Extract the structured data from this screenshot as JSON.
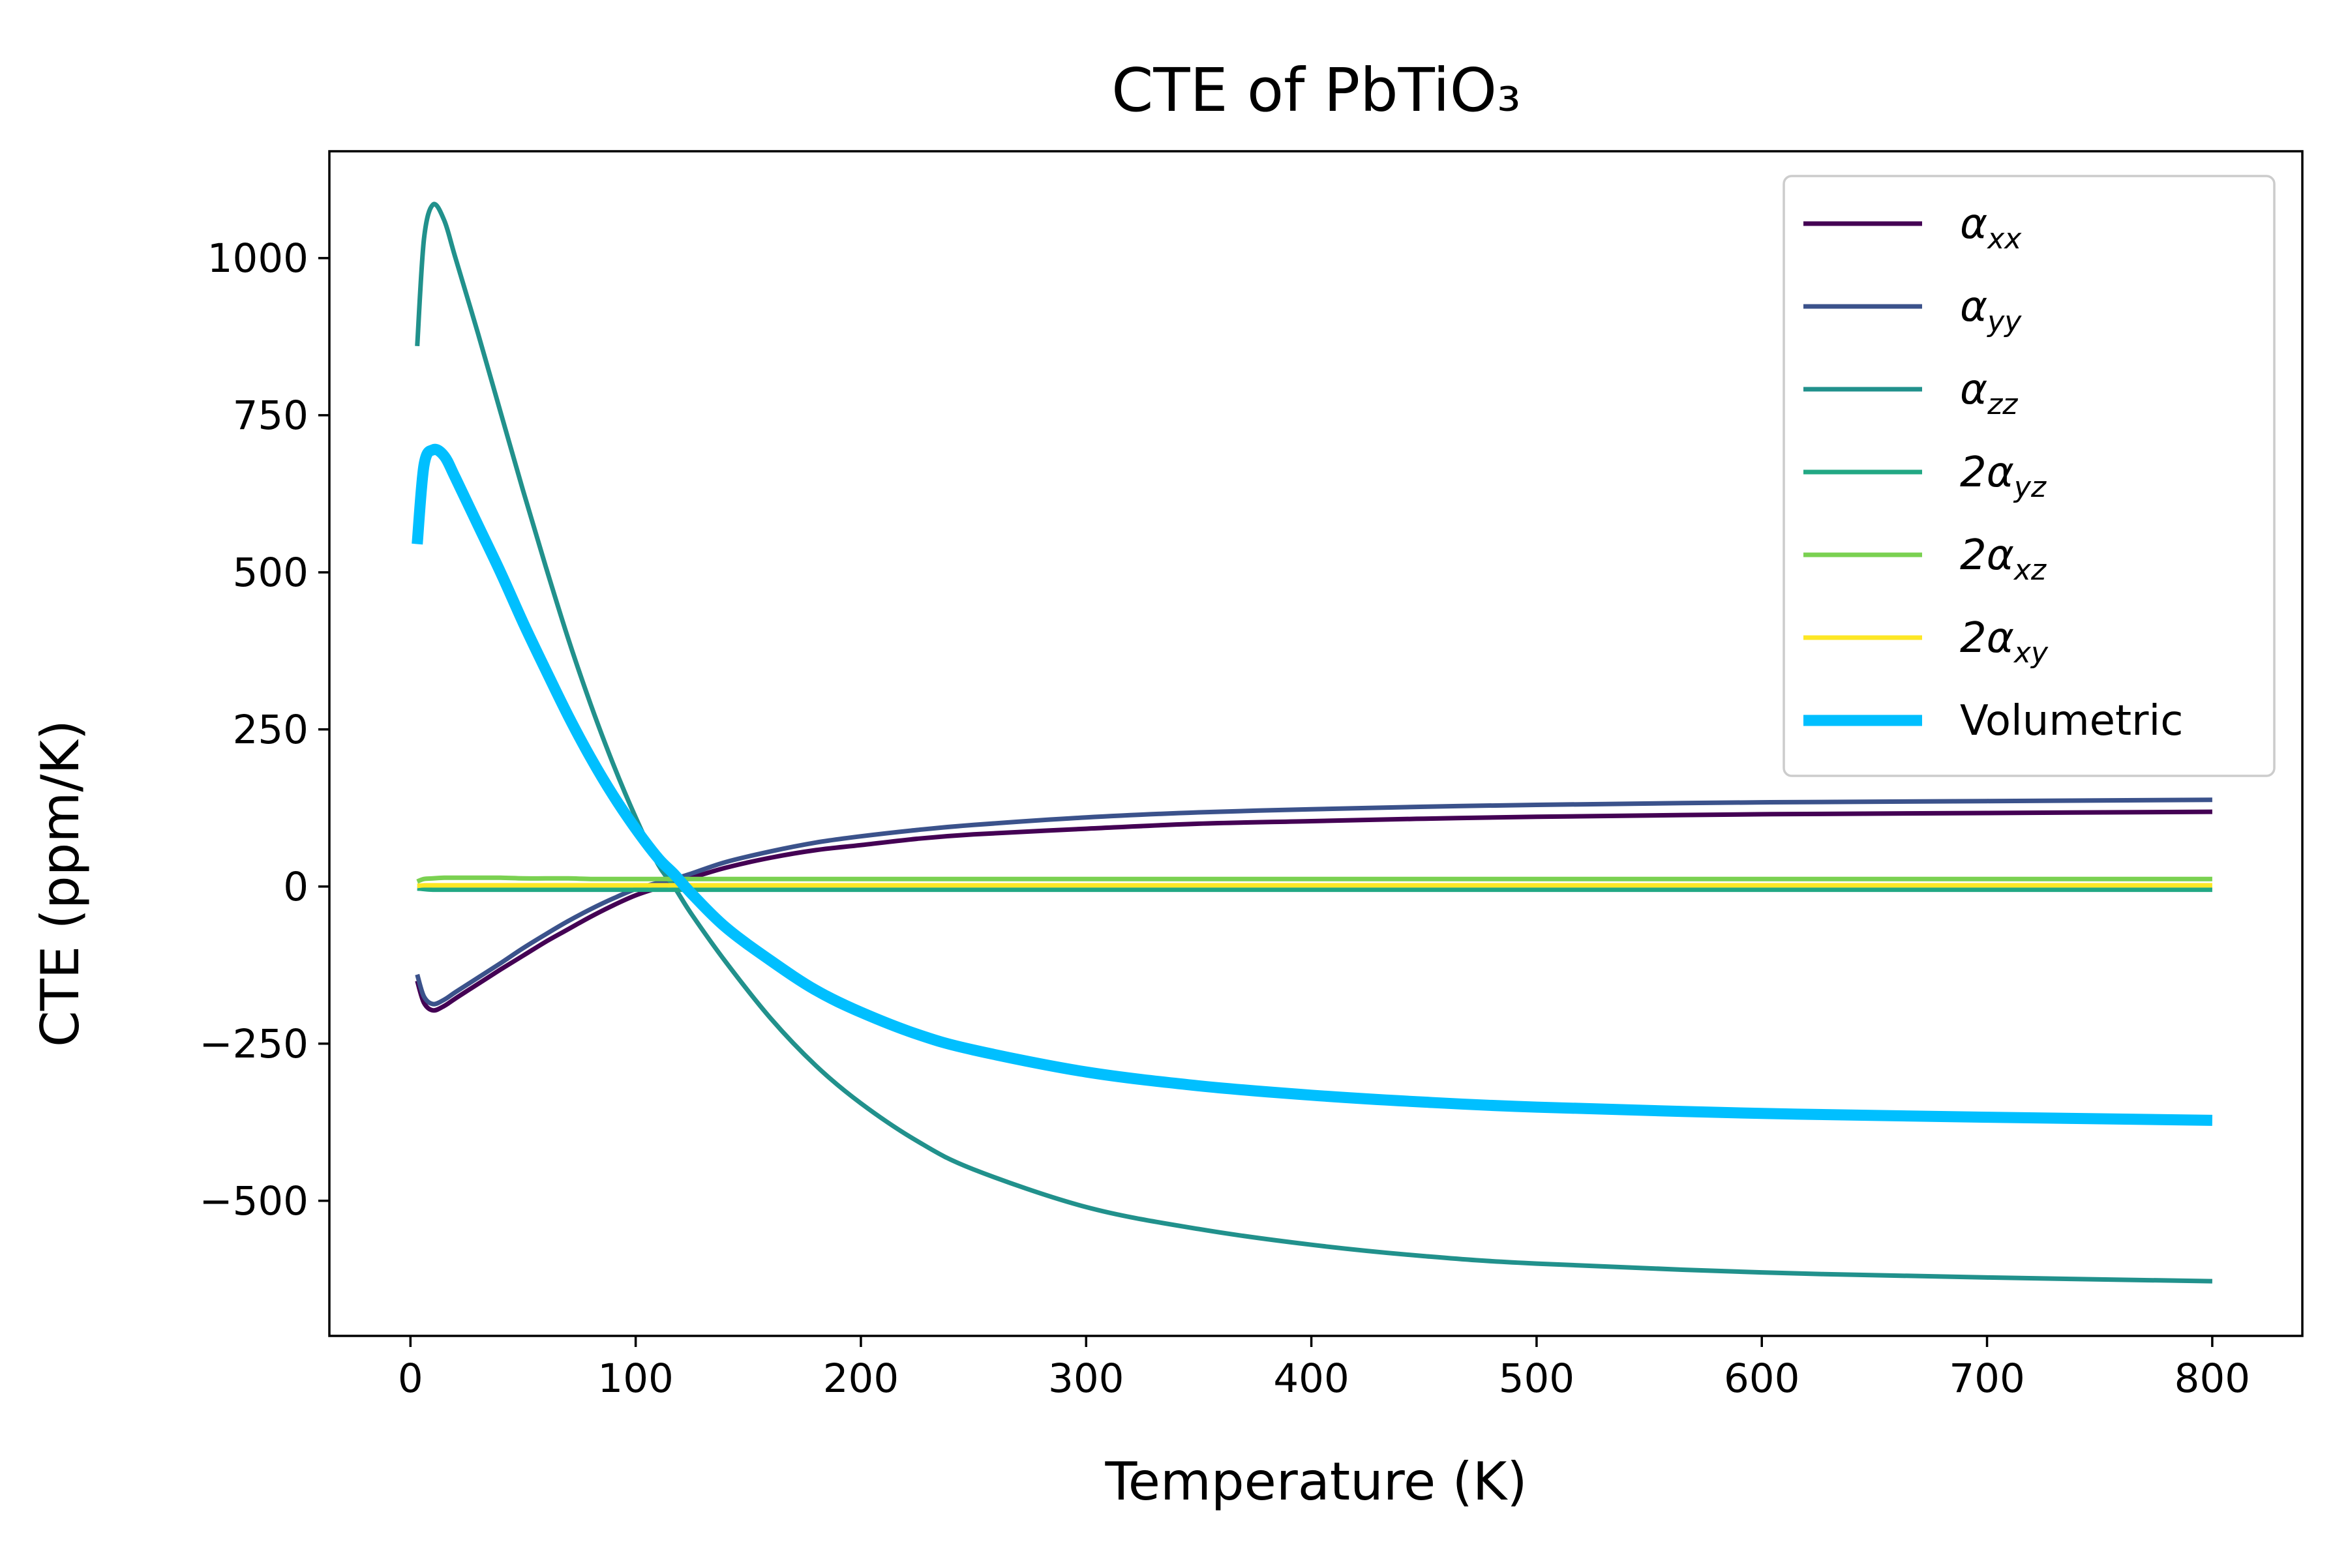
{
  "chart_data": {
    "type": "line",
    "title": "CTE of PbTiO₃",
    "xlabel": "Temperature (K)",
    "ylabel": "CTE (ppm/K)",
    "xlim": [
      -36,
      840
    ],
    "ylim": [
      -715,
      1170
    ],
    "xticks": [
      0,
      100,
      200,
      300,
      400,
      500,
      600,
      700,
      800
    ],
    "xtick_labels": [
      "0",
      "100",
      "200",
      "300",
      "400",
      "500",
      "600",
      "700",
      "800"
    ],
    "yticks": [
      -500,
      -250,
      0,
      250,
      500,
      750,
      1000
    ],
    "ytick_labels": [
      "−500",
      "−250",
      "0",
      "250",
      "500",
      "750",
      "1000"
    ],
    "grid": false,
    "legend_position": "top-right",
    "x": [
      3,
      6,
      10,
      15,
      20,
      30,
      40,
      50,
      60,
      70,
      80,
      90,
      100,
      110,
      117,
      125,
      140,
      160,
      180,
      200,
      225,
      250,
      300,
      350,
      400,
      450,
      500,
      600,
      700,
      800
    ],
    "series": [
      {
        "name": "α_xx",
        "legend_base": "α",
        "legend_sub": "xx",
        "color": "#440154",
        "values": [
          -150,
          -185,
          -197,
          -190,
          -178,
          -155,
          -132,
          -110,
          -88,
          -68,
          -48,
          -30,
          -14,
          -2,
          5,
          14,
          30,
          46,
          58,
          66,
          76,
          83,
          92,
          100,
          104,
          108,
          111,
          115,
          117,
          119
        ]
      },
      {
        "name": "α_yy",
        "legend_base": "α",
        "legend_sub": "yy",
        "color": "#3b528b",
        "values": [
          -140,
          -175,
          -187,
          -180,
          -168,
          -145,
          -122,
          -98,
          -76,
          -55,
          -36,
          -19,
          -4,
          6,
          12,
          21,
          39,
          56,
          70,
          80,
          90,
          98,
          110,
          118,
          123,
          127,
          130,
          134,
          136,
          138
        ]
      },
      {
        "name": "α_zz",
        "legend_base": "α",
        "legend_sub": "zz",
        "color": "#21918c",
        "values": [
          860,
          1030,
          1085,
          1060,
          1000,
          880,
          755,
          630,
          510,
          395,
          290,
          195,
          110,
          35,
          0,
          -45,
          -120,
          -210,
          -285,
          -345,
          -405,
          -450,
          -510,
          -545,
          -570,
          -588,
          -600,
          -614,
          -622,
          -628
        ]
      },
      {
        "name": "2α_yz",
        "legend_base": "2α",
        "legend_sub": "yz",
        "color": "#22a884",
        "values": [
          -3,
          -4,
          -5,
          -5,
          -5,
          -5,
          -5,
          -5,
          -5,
          -5,
          -5,
          -5,
          -5,
          -5,
          -5,
          -5,
          -5,
          -5,
          -5,
          -5,
          -5,
          -5,
          -5,
          -5,
          -5,
          -5,
          -5,
          -5,
          -5,
          -5
        ]
      },
      {
        "name": "2α_xz",
        "legend_base": "2α",
        "legend_sub": "xz",
        "color": "#7ad151",
        "values": [
          8,
          12,
          13,
          14,
          14,
          14,
          14,
          13,
          13,
          13,
          12,
          12,
          12,
          12,
          12,
          12,
          12,
          12,
          12,
          12,
          12,
          12,
          12,
          12,
          12,
          12,
          12,
          12,
          12,
          12
        ]
      },
      {
        "name": "2α_xy",
        "legend_base": "2α",
        "legend_sub": "xy",
        "color": "#fde725",
        "values": [
          1,
          2,
          2,
          2,
          2,
          2,
          2,
          2,
          2,
          2,
          2,
          2,
          2,
          2,
          2,
          2,
          2,
          2,
          2,
          2,
          2,
          2,
          2,
          2,
          2,
          2,
          2,
          2,
          2,
          2
        ]
      },
      {
        "name": "Volumetric",
        "legend_base": "Volumetric",
        "legend_sub": "",
        "color": "#00bfff",
        "thick": true,
        "values": [
          545,
          670,
          695,
          685,
          650,
          575,
          500,
          420,
          345,
          272,
          205,
          145,
          92,
          45,
          20,
          -12,
          -65,
          -118,
          -165,
          -200,
          -235,
          -260,
          -295,
          -317,
          -332,
          -343,
          -351,
          -361,
          -367,
          -372
        ]
      }
    ]
  }
}
